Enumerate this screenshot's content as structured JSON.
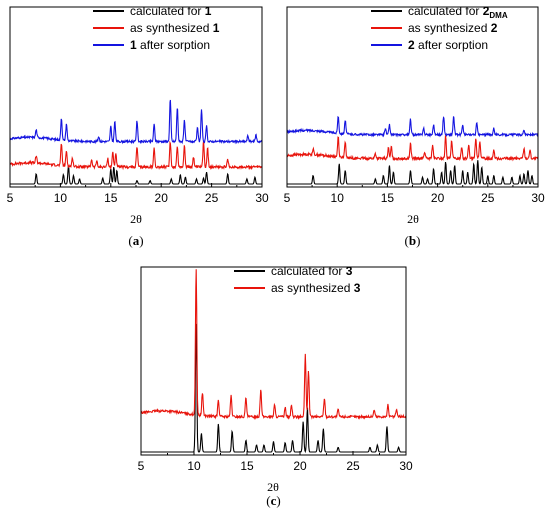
{
  "chart_data": [
    {
      "type": "line",
      "caption": "(a)",
      "xlabel": "2θ",
      "xlim": [
        5,
        30
      ],
      "xticks": [
        "5",
        "10",
        "15",
        "20",
        "25",
        "30"
      ],
      "legend_position": "top-right",
      "legend": [
        {
          "prefix": "calculated for ",
          "bold": "1",
          "sub": "",
          "suffix": ""
        },
        {
          "prefix": "as synthesized ",
          "bold": "1",
          "sub": "",
          "suffix": ""
        },
        {
          "prefix": "",
          "bold": "1",
          "sub": "",
          "suffix": " after sorption"
        }
      ],
      "series": [
        {
          "color": "#000000",
          "baseline": 0.0,
          "noise": 0.0,
          "peaks": [
            [
              7.6,
              0.6
            ],
            [
              10.3,
              0.55
            ],
            [
              10.8,
              1.1
            ],
            [
              11.3,
              0.5
            ],
            [
              11.9,
              0.3
            ],
            [
              14.2,
              0.35
            ],
            [
              15.0,
              0.9
            ],
            [
              15.3,
              1.0
            ],
            [
              15.6,
              0.8
            ],
            [
              17.6,
              0.2
            ],
            [
              18.9,
              0.2
            ],
            [
              21.0,
              0.3
            ],
            [
              21.9,
              0.55
            ],
            [
              22.4,
              0.4
            ],
            [
              23.5,
              0.3
            ],
            [
              24.2,
              0.35
            ],
            [
              24.5,
              0.7
            ],
            [
              26.6,
              0.6
            ],
            [
              28.5,
              0.3
            ],
            [
              29.3,
              0.4
            ]
          ]
        },
        {
          "color": "#e8140c",
          "baseline": 1.0,
          "noise": 0.15,
          "peaks": [
            [
              7.6,
              0.4
            ],
            [
              10.1,
              1.3
            ],
            [
              10.6,
              0.9
            ],
            [
              11.2,
              0.5
            ],
            [
              13.1,
              0.45
            ],
            [
              13.6,
              0.35
            ],
            [
              14.7,
              0.5
            ],
            [
              15.2,
              0.9
            ],
            [
              15.5,
              0.8
            ],
            [
              17.6,
              1.2
            ],
            [
              19.3,
              1.1
            ],
            [
              20.9,
              1.5
            ],
            [
              21.6,
              1.2
            ],
            [
              22.3,
              1.3
            ],
            [
              23.2,
              0.6
            ],
            [
              24.2,
              1.5
            ],
            [
              24.6,
              1.2
            ],
            [
              26.6,
              0.45
            ]
          ]
        },
        {
          "color": "#1414e0",
          "baseline": 2.5,
          "noise": 0.12,
          "peaks": [
            [
              7.6,
              0.45
            ],
            [
              10.1,
              1.3
            ],
            [
              10.6,
              1.0
            ],
            [
              13.8,
              0.3
            ],
            [
              15.0,
              0.9
            ],
            [
              15.4,
              1.2
            ],
            [
              17.6,
              1.2
            ],
            [
              19.3,
              1.0
            ],
            [
              20.9,
              2.5
            ],
            [
              21.6,
              2.0
            ],
            [
              22.3,
              1.3
            ],
            [
              23.6,
              0.8
            ],
            [
              24.0,
              1.9
            ],
            [
              24.5,
              0.9
            ],
            [
              28.6,
              0.35
            ],
            [
              29.4,
              0.4
            ]
          ]
        }
      ]
    },
    {
      "type": "line",
      "caption": "(b)",
      "xlabel": "2θ",
      "xlim": [
        5,
        30
      ],
      "xticks": [
        "5",
        "10",
        "15",
        "20",
        "25",
        "30"
      ],
      "legend_position": "top-right",
      "legend": [
        {
          "prefix": "calculated for ",
          "bold": "2",
          "sub": "DMA",
          "suffix": ""
        },
        {
          "prefix": "as synthesized ",
          "bold": "2",
          "sub": "",
          "suffix": ""
        },
        {
          "prefix": "",
          "bold": "2",
          "sub": "",
          "suffix": " after sorption"
        }
      ],
      "series": [
        {
          "color": "#000000",
          "baseline": 0.0,
          "noise": 0.0,
          "peaks": [
            [
              7.6,
              0.5
            ],
            [
              10.2,
              1.2
            ],
            [
              10.8,
              0.8
            ],
            [
              13.8,
              0.3
            ],
            [
              14.6,
              0.5
            ],
            [
              15.2,
              1.1
            ],
            [
              15.6,
              0.7
            ],
            [
              17.3,
              0.8
            ],
            [
              18.5,
              0.4
            ],
            [
              19.0,
              0.3
            ],
            [
              19.6,
              0.9
            ],
            [
              20.4,
              0.7
            ],
            [
              20.8,
              1.3
            ],
            [
              21.3,
              0.8
            ],
            [
              21.7,
              1.1
            ],
            [
              22.5,
              0.8
            ],
            [
              23.0,
              0.7
            ],
            [
              23.6,
              1.2
            ],
            [
              24.0,
              1.4
            ],
            [
              24.4,
              1.0
            ],
            [
              25.0,
              0.5
            ],
            [
              25.6,
              0.5
            ],
            [
              26.5,
              0.4
            ],
            [
              27.4,
              0.4
            ],
            [
              28.2,
              0.5
            ],
            [
              28.6,
              0.6
            ],
            [
              29.0,
              0.8
            ],
            [
              29.4,
              0.5
            ]
          ]
        },
        {
          "color": "#e8140c",
          "baseline": 1.5,
          "noise": 0.15,
          "peaks": [
            [
              7.6,
              0.3
            ],
            [
              10.1,
              1.2
            ],
            [
              10.8,
              0.9
            ],
            [
              13.8,
              0.3
            ],
            [
              15.1,
              0.6
            ],
            [
              15.4,
              0.7
            ],
            [
              17.3,
              0.9
            ],
            [
              18.7,
              0.4
            ],
            [
              19.5,
              0.8
            ],
            [
              20.8,
              1.3
            ],
            [
              21.4,
              1.1
            ],
            [
              22.4,
              0.7
            ],
            [
              23.1,
              0.8
            ],
            [
              23.8,
              1.2
            ],
            [
              24.2,
              1.0
            ],
            [
              25.6,
              0.5
            ],
            [
              28.6,
              0.6
            ],
            [
              29.2,
              0.5
            ]
          ]
        },
        {
          "color": "#1414e0",
          "baseline": 2.9,
          "noise": 0.12,
          "peaks": [
            [
              10.1,
              1.0
            ],
            [
              10.8,
              0.8
            ],
            [
              14.8,
              0.4
            ],
            [
              15.2,
              0.6
            ],
            [
              17.3,
              0.9
            ],
            [
              18.6,
              0.4
            ],
            [
              19.6,
              0.6
            ],
            [
              20.6,
              1.1
            ],
            [
              21.6,
              1.1
            ],
            [
              22.5,
              0.6
            ],
            [
              23.9,
              0.7
            ],
            [
              25.6,
              0.4
            ],
            [
              28.6,
              0.3
            ]
          ]
        }
      ]
    },
    {
      "type": "line",
      "caption": "(c)",
      "xlabel": "2θ",
      "xlim": [
        5,
        30
      ],
      "xticks": [
        "5",
        "10",
        "15",
        "20",
        "25",
        "30"
      ],
      "legend_position": "top-right",
      "legend": [
        {
          "prefix": "calculated for ",
          "bold": "3",
          "sub": "",
          "suffix": ""
        },
        {
          "prefix": "as synthesized ",
          "bold": "3",
          "sub": "",
          "suffix": ""
        }
      ],
      "series": [
        {
          "color": "#000000",
          "baseline": 0.0,
          "noise": 0.0,
          "peaks": [
            [
              10.2,
              5.5
            ],
            [
              10.7,
              0.8
            ],
            [
              12.3,
              1.2
            ],
            [
              13.6,
              0.9
            ],
            [
              14.9,
              0.5
            ],
            [
              15.9,
              0.3
            ],
            [
              16.6,
              0.3
            ],
            [
              17.5,
              0.45
            ],
            [
              18.6,
              0.4
            ],
            [
              19.3,
              0.5
            ],
            [
              20.3,
              1.3
            ],
            [
              20.7,
              1.9
            ],
            [
              21.7,
              0.5
            ],
            [
              22.2,
              1.0
            ],
            [
              23.6,
              0.2
            ],
            [
              26.6,
              0.2
            ],
            [
              27.3,
              0.3
            ],
            [
              28.2,
              1.1
            ],
            [
              29.3,
              0.2
            ]
          ]
        },
        {
          "color": "#e8140c",
          "baseline": 1.5,
          "noise": 0.1,
          "peaks": [
            [
              10.2,
              6.2
            ],
            [
              10.8,
              1.0
            ],
            [
              12.3,
              0.7
            ],
            [
              13.5,
              0.9
            ],
            [
              14.9,
              0.8
            ],
            [
              16.3,
              1.2
            ],
            [
              17.6,
              0.5
            ],
            [
              18.6,
              0.4
            ],
            [
              19.2,
              0.5
            ],
            [
              20.5,
              2.7
            ],
            [
              20.8,
              2.0
            ],
            [
              22.3,
              0.8
            ],
            [
              23.6,
              0.3
            ],
            [
              27.0,
              0.3
            ],
            [
              28.3,
              0.5
            ],
            [
              29.1,
              0.3
            ]
          ]
        }
      ]
    }
  ]
}
